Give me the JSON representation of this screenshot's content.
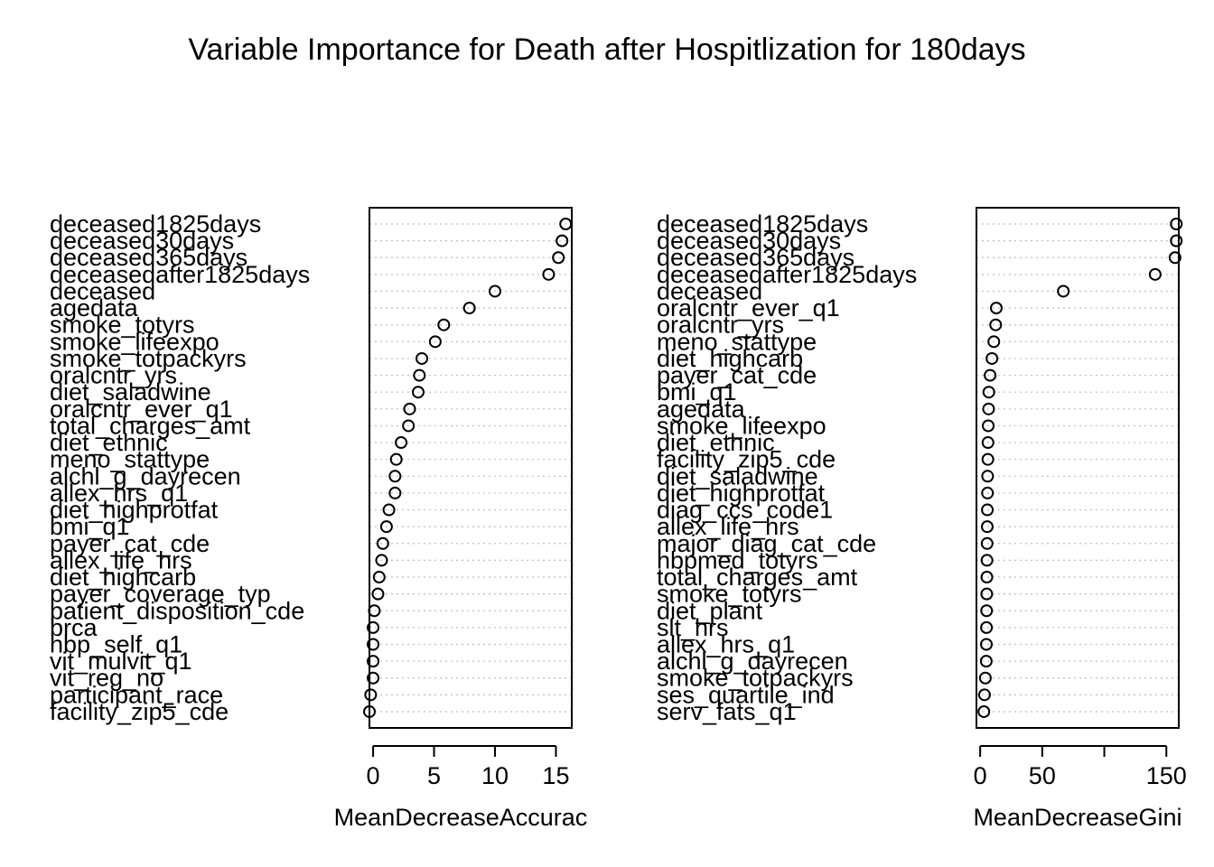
{
  "title": "Variable Importance for Death after Hospitlization for 180days",
  "chart_data": [
    {
      "type": "dotchart",
      "xlabel": "MeanDecreaseAccurac",
      "xlim": [
        -0.3,
        16.3
      ],
      "ticks": [
        0,
        5,
        10,
        15
      ],
      "tick_labels": [
        "0",
        "5",
        "10",
        "15"
      ],
      "grid": "dotted horizontal",
      "labels": [
        "deceased1825days",
        "deceased30days",
        "deceased365days",
        "deceasedafter1825days",
        "deceased",
        "agedata",
        "smoke_totyrs",
        "smoke_lifeexpo",
        "smoke_totpackyrs",
        "oralcntr_yrs",
        "diet_saladwine",
        "oralcntr_ever_q1",
        "total_charges_amt",
        "diet_ethnic",
        "meno_stattype",
        "alchl_g_dayrecen",
        "allex_hrs_q1",
        "diet_highprotfat",
        "bmi_q1",
        "payer_cat_cde",
        "allex_life_hrs",
        "diet_highcarb",
        "payer_coverage_typ",
        "patient_disposition_cde",
        "brca",
        "hbp_self_q1",
        "vit_mulvit_q1",
        "vit_reg_no",
        "participant_race",
        "facility_zip5_cde"
      ],
      "values": [
        15.8,
        15.5,
        15.2,
        14.4,
        10.0,
        7.9,
        5.8,
        5.1,
        4.0,
        3.8,
        3.7,
        3.0,
        2.9,
        2.3,
        1.9,
        1.8,
        1.8,
        1.3,
        1.1,
        0.8,
        0.7,
        0.5,
        0.4,
        0.1,
        0.0,
        0.0,
        0.0,
        0.0,
        -0.2,
        -0.3
      ]
    },
    {
      "type": "dotchart",
      "xlabel": "MeanDecreaseGini",
      "xlim": [
        -3,
        160
      ],
      "ticks": [
        0,
        50,
        100,
        150
      ],
      "tick_labels": [
        "0",
        "50",
        "",
        "150"
      ],
      "grid": "dotted horizontal",
      "labels": [
        "deceased1825days",
        "deceased30days",
        "deceased365days",
        "deceasedafter1825days",
        "deceased",
        "oralcntr_ever_q1",
        "oralcntr_yrs",
        "meno_stattype",
        "diet_highcarb",
        "payer_cat_cde",
        "bmi_q1",
        "agedata",
        "smoke_lifeexpo",
        "diet_ethnic",
        "facility_zip5_cde",
        "diet_saladwine",
        "diet_highprotfat",
        "diag_ccs_code1",
        "allex_life_hrs",
        "major_diag_cat_cde",
        "hbpmed_totyrs",
        "total_charges_amt",
        "smoke_totyrs",
        "diet_plant",
        "slt_hrs",
        "allex_hrs_q1",
        "alchl_g_dayrecen",
        "smoke_totpackyrs",
        "ses_quartile_ind",
        "serv_fats_q1"
      ],
      "values": [
        158,
        158,
        157,
        141,
        67,
        13,
        12.5,
        11,
        9.5,
        8,
        7,
        6.8,
        6.5,
        6.3,
        6.2,
        6.0,
        5.9,
        5.8,
        5.7,
        5.6,
        5.5,
        5.4,
        5.3,
        5.2,
        5.1,
        5.0,
        4.9,
        4.2,
        3.5,
        3.0
      ]
    }
  ]
}
